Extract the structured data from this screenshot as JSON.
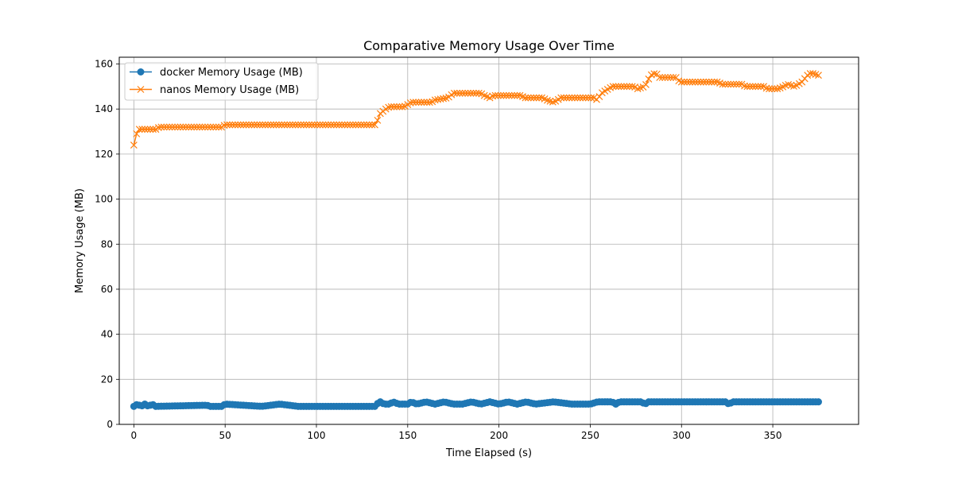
{
  "chart_data": {
    "type": "line",
    "title": "Comparative Memory Usage Over Time",
    "xlabel": "Time Elapsed (s)",
    "ylabel": "Memory Usage (MB)",
    "xlim": [
      -8,
      397
    ],
    "ylim": [
      0,
      163
    ],
    "xticks": [
      0,
      50,
      100,
      150,
      200,
      250,
      300,
      350
    ],
    "yticks": [
      0,
      20,
      40,
      60,
      80,
      100,
      120,
      140,
      160
    ],
    "grid": true,
    "legend": "top-left",
    "x_range": [
      0,
      375
    ],
    "x_step": 1.5,
    "series": [
      {
        "name": "docker Memory Usage (MB)",
        "color": "#1f77b4",
        "marker": "circle",
        "keyframes": [
          [
            0,
            8
          ],
          [
            2,
            9
          ],
          [
            4,
            8
          ],
          [
            6,
            9
          ],
          [
            8,
            8
          ],
          [
            10,
            9
          ],
          [
            12,
            8
          ],
          [
            40,
            8.5
          ],
          [
            42,
            8
          ],
          [
            48,
            8
          ],
          [
            50,
            9
          ],
          [
            60,
            8.5
          ],
          [
            70,
            8
          ],
          [
            80,
            9
          ],
          [
            90,
            8
          ],
          [
            100,
            8
          ],
          [
            110,
            8
          ],
          [
            120,
            8
          ],
          [
            132,
            8
          ],
          [
            133,
            9
          ],
          [
            135,
            10
          ],
          [
            137,
            9
          ],
          [
            140,
            9
          ],
          [
            142,
            10
          ],
          [
            145,
            9
          ],
          [
            150,
            9
          ],
          [
            152,
            10
          ],
          [
            155,
            9
          ],
          [
            160,
            10
          ],
          [
            165,
            9
          ],
          [
            170,
            10
          ],
          [
            175,
            9
          ],
          [
            180,
            9
          ],
          [
            185,
            10
          ],
          [
            190,
            9
          ],
          [
            195,
            10
          ],
          [
            200,
            9
          ],
          [
            205,
            10
          ],
          [
            210,
            9
          ],
          [
            215,
            10
          ],
          [
            220,
            9
          ],
          [
            230,
            10
          ],
          [
            240,
            9
          ],
          [
            250,
            9
          ],
          [
            254,
            10
          ],
          [
            262,
            10
          ],
          [
            264,
            9
          ],
          [
            266,
            10
          ],
          [
            278,
            10
          ],
          [
            280,
            9
          ],
          [
            282,
            10
          ],
          [
            324,
            10
          ],
          [
            326,
            9
          ],
          [
            328,
            10
          ],
          [
            375,
            10
          ]
        ]
      },
      {
        "name": "nanos Memory Usage (MB)",
        "color": "#ff7f0e",
        "marker": "x",
        "keyframes": [
          [
            0,
            124
          ],
          [
            1,
            128
          ],
          [
            2,
            130
          ],
          [
            3,
            131
          ],
          [
            12,
            131
          ],
          [
            14,
            132
          ],
          [
            40,
            132
          ],
          [
            48,
            132
          ],
          [
            50,
            133
          ],
          [
            132,
            133
          ],
          [
            133,
            134
          ],
          [
            135,
            138
          ],
          [
            138,
            140
          ],
          [
            140,
            141
          ],
          [
            148,
            141
          ],
          [
            150,
            142
          ],
          [
            152,
            143
          ],
          [
            163,
            143
          ],
          [
            165,
            144
          ],
          [
            172,
            145
          ],
          [
            175,
            147
          ],
          [
            190,
            147
          ],
          [
            192,
            146
          ],
          [
            195,
            145
          ],
          [
            197,
            146
          ],
          [
            212,
            146
          ],
          [
            214,
            145
          ],
          [
            224,
            145
          ],
          [
            226,
            144
          ],
          [
            230,
            143
          ],
          [
            234,
            145
          ],
          [
            252,
            145
          ],
          [
            254,
            144
          ],
          [
            256,
            147
          ],
          [
            260,
            149
          ],
          [
            262,
            150
          ],
          [
            274,
            150
          ],
          [
            276,
            149
          ],
          [
            280,
            150
          ],
          [
            283,
            155
          ],
          [
            286,
            156
          ],
          [
            288,
            154
          ],
          [
            297,
            154
          ],
          [
            299,
            152
          ],
          [
            320,
            152
          ],
          [
            322,
            151
          ],
          [
            333,
            151
          ],
          [
            335,
            150
          ],
          [
            345,
            150
          ],
          [
            347,
            149
          ],
          [
            353,
            149
          ],
          [
            356,
            150
          ],
          [
            358,
            151
          ],
          [
            362,
            150
          ],
          [
            366,
            152
          ],
          [
            369,
            155
          ],
          [
            371,
            156
          ],
          [
            375,
            155
          ]
        ]
      }
    ]
  }
}
